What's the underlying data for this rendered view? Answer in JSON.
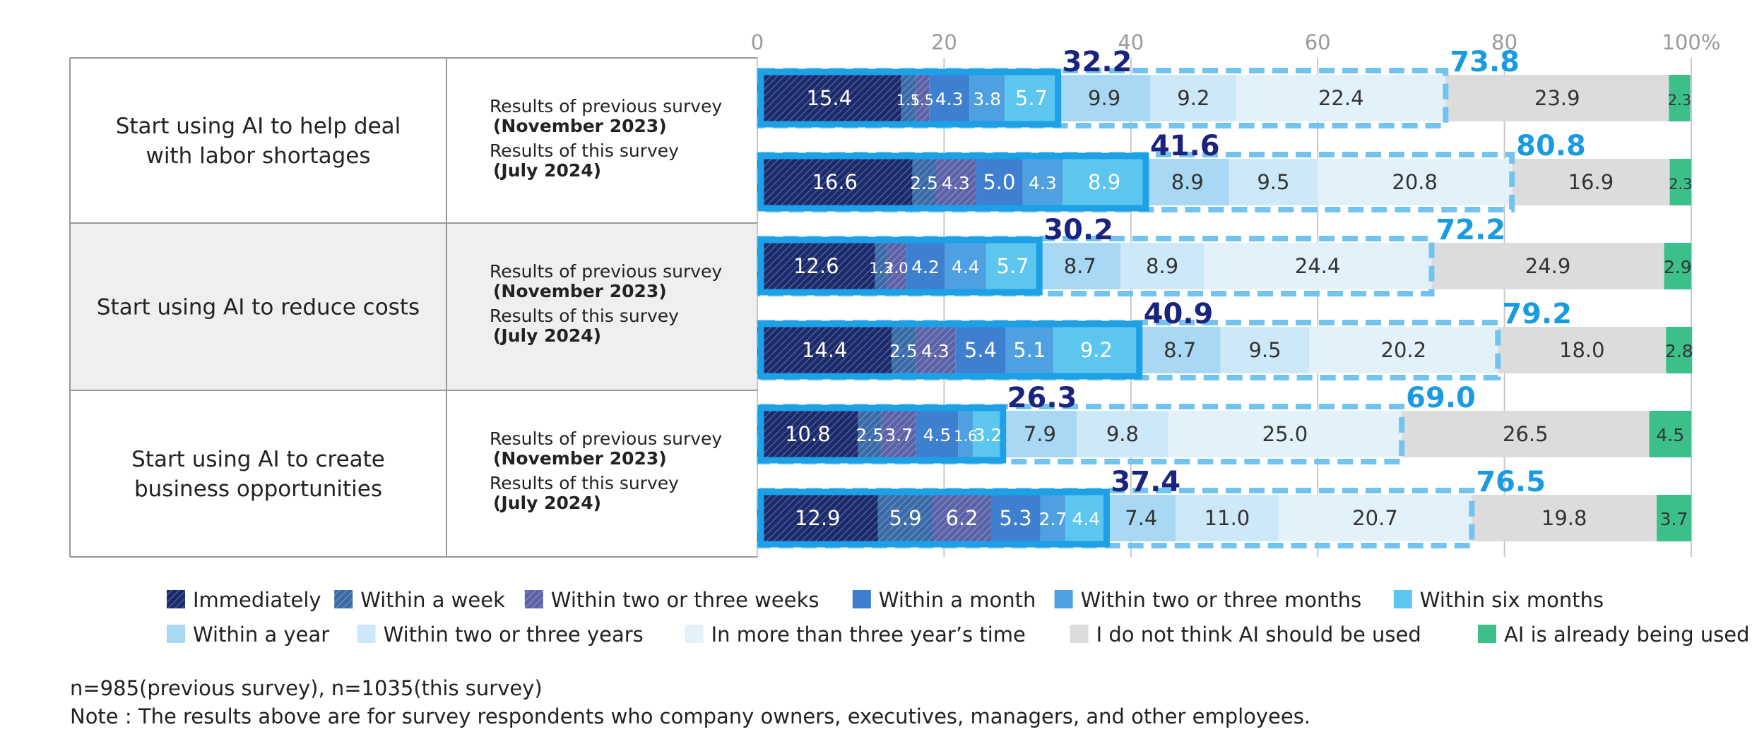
{
  "chart_data": {
    "type": "bar",
    "stacked": true,
    "orientation": "horizontal",
    "xlim": [
      0,
      100
    ],
    "x_ticks": [
      "0",
      "20",
      "40",
      "60",
      "80",
      "100%"
    ],
    "groups": [
      {
        "label": "Start using AI to help deal with labor shortages",
        "rows": [
          {
            "survey": "Results of previous survey",
            "period": "(November 2023)",
            "values": [
              15.4,
              1.5,
              1.5,
              4.3,
              3.8,
              5.7,
              9.9,
              9.2,
              22.4,
              23.9,
              2.3
            ],
            "total_six_months": 32.2,
            "total_three_years": 73.8
          },
          {
            "survey": "Results of this survey",
            "period": "(July 2024)",
            "values": [
              16.6,
              2.5,
              4.3,
              5.0,
              4.3,
              8.9,
              8.9,
              9.5,
              20.8,
              16.9,
              2.3
            ],
            "total_six_months": 41.6,
            "total_three_years": 80.8
          }
        ]
      },
      {
        "label": "Start using AI to reduce costs",
        "rows": [
          {
            "survey": "Results of previous survey",
            "period": "(November 2023)",
            "values": [
              12.6,
              1.3,
              2.0,
              4.2,
              4.4,
              5.7,
              8.7,
              8.9,
              24.4,
              24.9,
              2.9
            ],
            "total_six_months": 30.2,
            "total_three_years": 72.2
          },
          {
            "survey": "Results of this survey",
            "period": "(July 2024)",
            "values": [
              14.4,
              2.5,
              4.3,
              5.4,
              5.1,
              9.2,
              8.7,
              9.5,
              20.2,
              18.0,
              2.8
            ],
            "total_six_months": 40.9,
            "total_three_years": 79.2
          }
        ]
      },
      {
        "label": "Start using AI to create business opportunities",
        "rows": [
          {
            "survey": "Results of previous survey",
            "period": "(November 2023)",
            "values": [
              10.8,
              2.5,
              3.7,
              4.5,
              1.6,
              3.2,
              7.9,
              9.8,
              25.0,
              26.5,
              4.5
            ],
            "total_six_months": 26.3,
            "total_three_years": 69.0
          },
          {
            "survey": "Results of this survey",
            "period": "(July 2024)",
            "values": [
              12.9,
              5.9,
              6.2,
              5.3,
              2.7,
              4.4,
              7.4,
              11.0,
              20.7,
              19.8,
              3.7
            ],
            "total_six_months": 37.4,
            "total_three_years": 76.5
          }
        ]
      }
    ],
    "series": [
      {
        "name": "Immediately",
        "color": "#1a2a6c",
        "pattern": "hatch"
      },
      {
        "name": "Within a week",
        "color": "#3a6aa8",
        "pattern": "hatch"
      },
      {
        "name": "Within two or three weeks",
        "color": "#5c62a8",
        "pattern": "hatch"
      },
      {
        "name": "Within a month",
        "color": "#3e7fcf"
      },
      {
        "name": "Within two or three months",
        "color": "#4ea0e0"
      },
      {
        "name": "Within six months",
        "color": "#5cc6ef"
      },
      {
        "name": "Within a year",
        "color": "#a8d8f4"
      },
      {
        "name": "Within two or three years",
        "color": "#cde8f8"
      },
      {
        "name": "In more than three year’s time",
        "color": "#e3f1fb"
      },
      {
        "name": "I do not think AI should be used",
        "color": "#dcdcdc"
      },
      {
        "name": "AI is already being used",
        "color": "#3dbf8a"
      }
    ],
    "total_colors": {
      "six_months": "#1a237e",
      "three_years": "#1a9be0"
    },
    "legend_position": "bottom"
  },
  "footnotes": {
    "n": "n=985(previous survey),  n=1035(this survey)",
    "note": "Note : The results above are for survey respondents who company owners, executives, managers, and other employees."
  }
}
